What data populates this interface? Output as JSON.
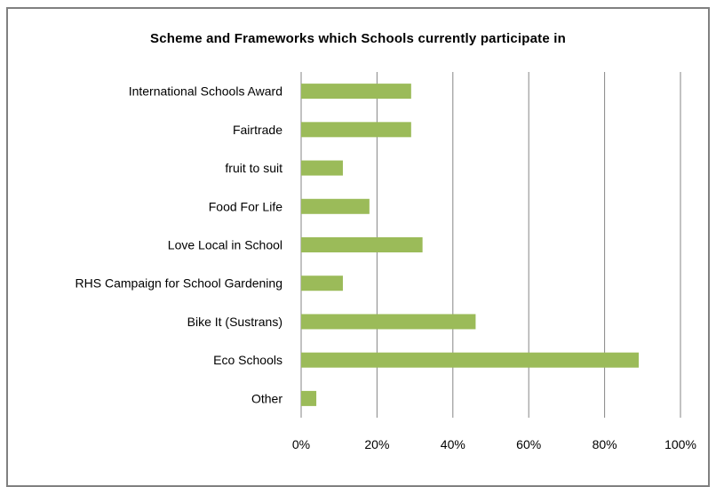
{
  "chart_data": {
    "type": "bar",
    "orientation": "horizontal",
    "title": "Scheme and Frameworks which Schools currently participate in",
    "categories": [
      "International Schools Award",
      "Fairtrade",
      "fruit to suit",
      "Food For Life",
      "Love Local in School",
      "RHS Campaign for School Gardening",
      "Bike It (Sustrans)",
      "Eco Schools",
      "Other"
    ],
    "values": [
      29,
      29,
      11,
      18,
      32,
      11,
      46,
      89,
      4
    ],
    "xlim": [
      0,
      100
    ],
    "x_ticks": [
      "0%",
      "20%",
      "40%",
      "60%",
      "80%",
      "100%"
    ],
    "grid": "vertical",
    "legend": "none",
    "colors": {
      "bar": "#9bbb59",
      "grid": "#868686",
      "frame": "#808080"
    }
  }
}
